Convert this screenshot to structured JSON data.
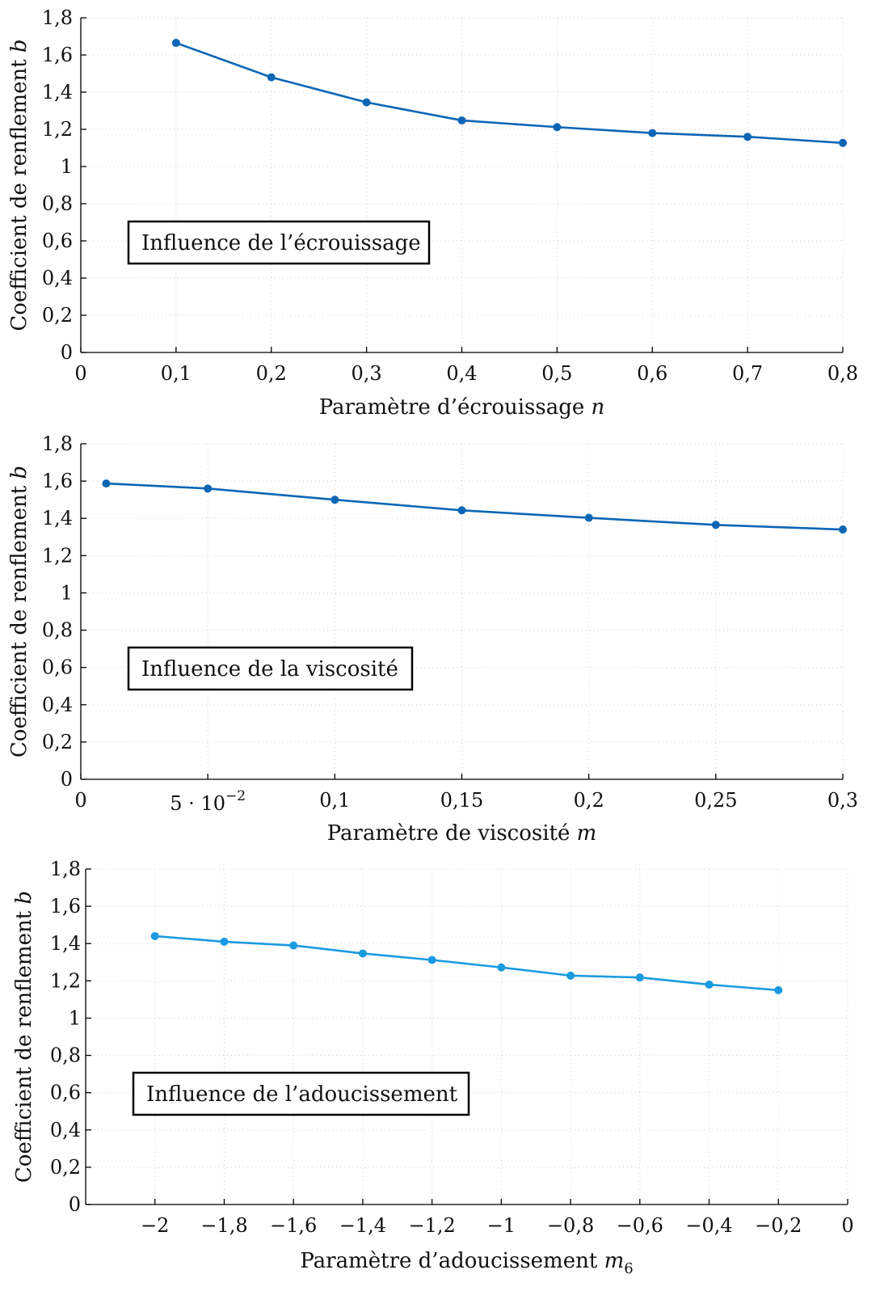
{
  "chart_data": [
    {
      "type": "line",
      "xlabel": "Paramètre d’écrouissage",
      "xvar": "n",
      "xsub": "",
      "ylabel": "Coefficient de renflement",
      "yvar": "b",
      "xlim": [
        0,
        0.8
      ],
      "ylim": [
        0,
        1.8
      ],
      "xticks": [
        0,
        0.1,
        0.2,
        0.3,
        0.4,
        0.5,
        0.6,
        0.7,
        0.8
      ],
      "xtick_labels": [
        "0",
        "0,1",
        "0,2",
        "0,3",
        "0,4",
        "0,5",
        "0,6",
        "0,7",
        "0,8"
      ],
      "yticks": [
        0,
        0.2,
        0.4,
        0.6,
        0.8,
        1,
        1.2,
        1.4,
        1.6,
        1.8
      ],
      "ytick_labels": [
        "0",
        "0,2",
        "0,4",
        "0,6",
        "0,8",
        "1",
        "1,2",
        "1,4",
        "1,6",
        "1,8"
      ],
      "grid": true,
      "color": "#0b66b5",
      "annotation": "Influence de l’écrouissage",
      "series": [
        {
          "x": [
            0.1,
            0.2,
            0.3,
            0.4,
            0.5,
            0.6,
            0.7,
            0.8
          ],
          "y": [
            1.665,
            1.48,
            1.345,
            1.248,
            1.212,
            1.18,
            1.16,
            1.127
          ]
        }
      ]
    },
    {
      "type": "line",
      "xlabel": "Paramètre de viscosité",
      "xvar": "m",
      "xsub": "",
      "ylabel": "Coefficient de renflement",
      "yvar": "b",
      "xlim": [
        0,
        0.3
      ],
      "ylim": [
        0,
        1.8
      ],
      "xticks": [
        0,
        0.05,
        0.1,
        0.15,
        0.2,
        0.25,
        0.3
      ],
      "xtick_labels": [
        "0",
        "5·10⁻²",
        "0,1",
        "0,15",
        "0,2",
        "0,25",
        "0,3"
      ],
      "yticks": [
        0,
        0.2,
        0.4,
        0.6,
        0.8,
        1,
        1.2,
        1.4,
        1.6,
        1.8
      ],
      "ytick_labels": [
        "0",
        "0,2",
        "0,4",
        "0,6",
        "0,8",
        "1",
        "1,2",
        "1,4",
        "1,6",
        "1,8"
      ],
      "grid": true,
      "color": "#0b66b5",
      "annotation": "Influence de la viscosité",
      "series": [
        {
          "x": [
            0.01,
            0.05,
            0.1,
            0.15,
            0.2,
            0.25,
            0.3
          ],
          "y": [
            1.587,
            1.56,
            1.5,
            1.443,
            1.403,
            1.365,
            1.34
          ]
        }
      ]
    },
    {
      "type": "line",
      "xlabel": "Paramètre d’adoucissement",
      "xvar": "m",
      "xsub": "6",
      "ylabel": "Coefficient de renflement",
      "yvar": "b",
      "xlim": [
        -2.2,
        0
      ],
      "ylim": [
        0,
        1.8
      ],
      "xticks": [
        -2,
        -1.8,
        -1.6,
        -1.4,
        -1.2,
        -1,
        -0.8,
        -0.6,
        -0.4,
        -0.2,
        0
      ],
      "xtick_labels": [
        "−2",
        "−1,8",
        "−1,6",
        "−1,4",
        "−1,2",
        "−1",
        "−0,8",
        "−0,6",
        "−0,4",
        "−0,2",
        "0"
      ],
      "yticks": [
        0,
        0.2,
        0.4,
        0.6,
        0.8,
        1,
        1.2,
        1.4,
        1.6,
        1.8
      ],
      "ytick_labels": [
        "0",
        "0,2",
        "0,4",
        "0,6",
        "0,8",
        "1",
        "1,2",
        "1,4",
        "1,6",
        "1,8"
      ],
      "grid": true,
      "color": "#1a9ae0",
      "annotation": "Influence de l’adoucissement",
      "series": [
        {
          "x": [
            -2,
            -1.8,
            -1.6,
            -1.4,
            -1.2,
            -1,
            -0.8,
            -0.6,
            -0.4,
            -0.2
          ],
          "y": [
            1.44,
            1.41,
            1.39,
            1.347,
            1.312,
            1.272,
            1.228,
            1.218,
            1.18,
            1.15
          ]
        }
      ]
    }
  ]
}
